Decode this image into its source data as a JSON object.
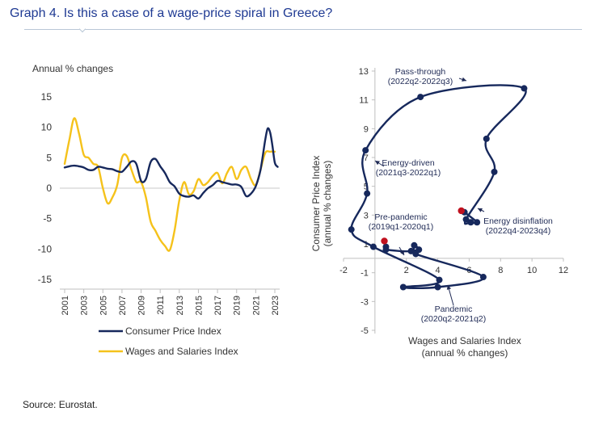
{
  "header": {
    "title": "Graph 4. Is this a case of a wage-price spiral in Greece?"
  },
  "footer": {
    "source": "Source: Eurostat."
  },
  "colors": {
    "cpi": "#16285c",
    "wages": "#f5c21b",
    "marker_start": "#c0111f",
    "title": "#1f3a93"
  },
  "chart_data": [
    {
      "type": "line",
      "title": "",
      "ylabel": "Annual % changes",
      "ylim": [
        -15,
        15
      ],
      "yticks": [
        15,
        10,
        5,
        0,
        -5,
        -10,
        -15
      ],
      "xlim": [
        2001,
        2023
      ],
      "xticks": [
        "2001",
        "2003",
        "2005",
        "2007",
        "2009",
        "2011",
        "2013",
        "2015",
        "2017",
        "2019",
        "2021",
        "2023"
      ],
      "grid": false,
      "legend_position": "bottom",
      "series": [
        {
          "name": "Consumer Price Index",
          "color": "#16285c",
          "x": [
            2001,
            2001.5,
            2002,
            2002.5,
            2003,
            2003.5,
            2004,
            2004.5,
            2005,
            2005.5,
            2006,
            2006.5,
            2007,
            2007.5,
            2008,
            2008.5,
            2009,
            2009.5,
            2010,
            2010.5,
            2011,
            2011.5,
            2012,
            2012.5,
            2013,
            2013.5,
            2014,
            2014.5,
            2015,
            2015.5,
            2016,
            2016.5,
            2017,
            2017.5,
            2018,
            2018.5,
            2019,
            2019.5,
            2020,
            2020.5,
            2021,
            2021.5,
            2022,
            2022.25,
            2022.5,
            2022.75,
            2023,
            2023.3
          ],
          "y": [
            3.4,
            3.6,
            3.7,
            3.6,
            3.4,
            3.0,
            3.0,
            3.5,
            3.4,
            3.2,
            3.1,
            2.8,
            2.7,
            3.5,
            4.4,
            4.0,
            1.2,
            1.5,
            4.3,
            4.8,
            3.6,
            2.5,
            1.0,
            0.3,
            -0.9,
            -1.3,
            -1.4,
            -1.2,
            -1.7,
            -0.8,
            0.0,
            0.5,
            1.2,
            1.0,
            0.8,
            0.6,
            0.6,
            0.2,
            -1.3,
            -0.9,
            0.3,
            3.0,
            8.0,
            9.8,
            9.2,
            7.0,
            4.2,
            3.5
          ]
        },
        {
          "name": "Wages and Salaries Index",
          "color": "#f5c21b",
          "x": [
            2001,
            2001.5,
            2002,
            2002.5,
            2003,
            2003.5,
            2004,
            2004.5,
            2005,
            2005.5,
            2006,
            2006.5,
            2007,
            2007.5,
            2008,
            2008.5,
            2009,
            2009.5,
            2010,
            2010.5,
            2011,
            2011.5,
            2012,
            2012.5,
            2013,
            2013.5,
            2014,
            2014.5,
            2015,
            2015.5,
            2016,
            2016.5,
            2017,
            2017.5,
            2018,
            2018.5,
            2019,
            2019.5,
            2020,
            2020.5,
            2021,
            2021.5,
            2022,
            2022.5,
            2023
          ],
          "y": [
            4.0,
            8.0,
            11.5,
            9.0,
            5.5,
            5.0,
            4.0,
            3.5,
            0.0,
            -2.5,
            -1.5,
            0.5,
            5.0,
            5.3,
            3.0,
            1.0,
            1.0,
            -1.5,
            -5.5,
            -7.0,
            -8.5,
            -9.5,
            -10.2,
            -7.0,
            -2.0,
            1.0,
            -1.0,
            -0.5,
            1.5,
            0.5,
            1.0,
            2.0,
            2.5,
            0.8,
            2.5,
            3.5,
            1.5,
            3.0,
            3.5,
            1.5,
            0.5,
            3.0,
            5.8,
            6.0,
            6.0
          ]
        }
      ]
    },
    {
      "type": "scatter",
      "title": "",
      "xlabel": "Wages and Salaries Index (annual % changes)",
      "ylabel": "Consumer Price Index (annual % changes)",
      "xlim": [
        -2,
        12
      ],
      "ylim": [
        -5,
        13
      ],
      "xticks": [
        -2,
        0,
        2,
        4,
        6,
        8,
        10,
        12
      ],
      "yticks": [
        -5,
        -3,
        -1,
        1,
        3,
        5,
        7,
        9,
        11,
        13
      ],
      "grid": false,
      "series": [
        {
          "name": "",
          "color": "#16285c",
          "points": [
            {
              "x": 0.7,
              "y": 0.8
            },
            {
              "x": 0.7,
              "y": 0.6
            },
            {
              "x": 2.3,
              "y": 0.5
            },
            {
              "x": 2.5,
              "y": 0.9
            },
            {
              "x": 2.8,
              "y": 0.6
            },
            {
              "x": 2.6,
              "y": 0.3
            },
            {
              "x": 6.9,
              "y": -1.3
            },
            {
              "x": 4.0,
              "y": -2.0
            },
            {
              "x": 1.8,
              "y": -2.0
            },
            {
              "x": 4.1,
              "y": -1.5
            },
            {
              "x": -0.1,
              "y": 0.8
            },
            {
              "x": -1.5,
              "y": 2.0
            },
            {
              "x": -0.5,
              "y": 4.5
            },
            {
              "x": -0.6,
              "y": 7.5
            },
            {
              "x": 2.9,
              "y": 11.2
            },
            {
              "x": 9.5,
              "y": 11.8
            },
            {
              "x": 7.1,
              "y": 8.3
            },
            {
              "x": 7.6,
              "y": 6.0
            },
            {
              "x": 5.8,
              "y": 2.7
            },
            {
              "x": 6.1,
              "y": 2.5
            },
            {
              "x": 6.5,
              "y": 2.5
            },
            {
              "x": 5.7,
              "y": 3.2
            }
          ],
          "highlight_points": [
            {
              "x": 0.6,
              "y": 1.2
            },
            {
              "x": 5.5,
              "y": 3.3
            }
          ]
        }
      ],
      "annotations": [
        {
          "text": [
            "Pass-through",
            "(2022q2-2022q3)"
          ]
        },
        {
          "text": [
            "Energy-driven",
            "(2021q3-2022q1)"
          ]
        },
        {
          "text": [
            "Pre-pandemic",
            "(2019q1-2020q1)"
          ]
        },
        {
          "text": [
            "Energy disinflation",
            "(2022q4-2023q4)"
          ]
        },
        {
          "text": [
            "Pandemic",
            "(2020q2-2021q2)"
          ]
        }
      ]
    }
  ]
}
